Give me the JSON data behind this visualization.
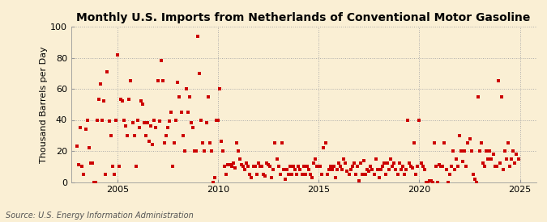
{
  "title": "Monthly U.S. Imports from Netherlands of Conventional Motor Gasoline",
  "ylabel": "Thousand Barrels per Day",
  "source": "Source: U.S. Energy Information Administration",
  "background_color": "#faefd4",
  "marker_color": "#cc0000",
  "marker_size": 5,
  "xlim": [
    2002.7,
    2025.8
  ],
  "ylim": [
    0,
    100
  ],
  "yticks": [
    0,
    20,
    40,
    60,
    80,
    100
  ],
  "xticks": [
    2005,
    2010,
    2015,
    2020,
    2025
  ],
  "grid_color": "#aaaaaa",
  "title_fontsize": 10,
  "label_fontsize": 8,
  "tick_fontsize": 8,
  "source_fontsize": 7,
  "dates": [
    2003.0,
    2003.083,
    2003.167,
    2003.25,
    2003.333,
    2003.417,
    2003.5,
    2003.583,
    2003.667,
    2003.75,
    2003.833,
    2003.917,
    2004.0,
    2004.083,
    2004.167,
    2004.25,
    2004.333,
    2004.417,
    2004.5,
    2004.583,
    2004.667,
    2004.75,
    2004.833,
    2004.917,
    2005.0,
    2005.083,
    2005.167,
    2005.25,
    2005.333,
    2005.417,
    2005.5,
    2005.583,
    2005.667,
    2005.75,
    2005.833,
    2005.917,
    2006.0,
    2006.083,
    2006.167,
    2006.25,
    2006.333,
    2006.417,
    2006.5,
    2006.583,
    2006.667,
    2006.75,
    2006.833,
    2006.917,
    2007.0,
    2007.083,
    2007.167,
    2007.25,
    2007.333,
    2007.417,
    2007.5,
    2007.583,
    2007.667,
    2007.75,
    2007.833,
    2007.917,
    2008.0,
    2008.083,
    2008.167,
    2008.25,
    2008.333,
    2008.417,
    2008.5,
    2008.583,
    2008.667,
    2008.75,
    2008.833,
    2008.917,
    2009.0,
    2009.083,
    2009.167,
    2009.25,
    2009.333,
    2009.417,
    2009.5,
    2009.583,
    2009.667,
    2009.75,
    2009.833,
    2009.917,
    2010.0,
    2010.083,
    2010.167,
    2010.25,
    2010.333,
    2010.417,
    2010.5,
    2010.583,
    2010.667,
    2010.75,
    2010.833,
    2010.917,
    2011.0,
    2011.083,
    2011.167,
    2011.25,
    2011.333,
    2011.417,
    2011.5,
    2011.583,
    2011.667,
    2011.75,
    2011.833,
    2011.917,
    2012.0,
    2012.083,
    2012.167,
    2012.25,
    2012.333,
    2012.417,
    2012.5,
    2012.583,
    2012.667,
    2012.75,
    2012.833,
    2012.917,
    2013.0,
    2013.083,
    2013.167,
    2013.25,
    2013.333,
    2013.417,
    2013.5,
    2013.583,
    2013.667,
    2013.75,
    2013.833,
    2013.917,
    2014.0,
    2014.083,
    2014.167,
    2014.25,
    2014.333,
    2014.417,
    2014.5,
    2014.583,
    2014.667,
    2014.75,
    2014.833,
    2014.917,
    2015.0,
    2015.083,
    2015.167,
    2015.25,
    2015.333,
    2015.417,
    2015.5,
    2015.583,
    2015.667,
    2015.75,
    2015.833,
    2015.917,
    2016.0,
    2016.083,
    2016.167,
    2016.25,
    2016.333,
    2016.417,
    2016.5,
    2016.583,
    2016.667,
    2016.75,
    2016.833,
    2016.917,
    2017.0,
    2017.083,
    2017.167,
    2017.25,
    2017.333,
    2017.417,
    2017.5,
    2017.583,
    2017.667,
    2017.75,
    2017.833,
    2017.917,
    2018.0,
    2018.083,
    2018.167,
    2018.25,
    2018.333,
    2018.417,
    2018.5,
    2018.583,
    2018.667,
    2018.75,
    2018.833,
    2018.917,
    2019.0,
    2019.083,
    2019.167,
    2019.25,
    2019.333,
    2019.417,
    2019.5,
    2019.583,
    2019.667,
    2019.75,
    2019.833,
    2019.917,
    2020.0,
    2020.083,
    2020.167,
    2020.25,
    2020.333,
    2020.417,
    2020.5,
    2020.583,
    2020.667,
    2020.75,
    2020.833,
    2020.917,
    2021.0,
    2021.083,
    2021.167,
    2021.25,
    2021.333,
    2021.417,
    2021.5,
    2021.583,
    2021.667,
    2021.75,
    2021.833,
    2021.917,
    2022.0,
    2022.083,
    2022.167,
    2022.25,
    2022.333,
    2022.417,
    2022.5,
    2022.583,
    2022.667,
    2022.75,
    2022.833,
    2022.917,
    2023.0,
    2023.083,
    2023.167,
    2023.25,
    2023.333,
    2023.417,
    2023.5,
    2023.583,
    2023.667,
    2023.75,
    2023.833,
    2023.917,
    2024.0,
    2024.083,
    2024.167,
    2024.25,
    2024.333,
    2024.417,
    2024.5,
    2024.583,
    2024.667,
    2024.75,
    2024.833,
    2024.917
  ],
  "values": [
    23,
    11,
    35,
    10,
    5,
    34,
    40,
    22,
    12,
    12,
    0,
    0,
    40,
    53,
    63,
    40,
    52,
    5,
    71,
    39,
    30,
    10,
    5,
    40,
    82,
    10,
    53,
    52,
    40,
    36,
    30,
    53,
    65,
    38,
    30,
    10,
    40,
    35,
    52,
    50,
    38,
    30,
    38,
    26,
    36,
    24,
    40,
    35,
    65,
    39,
    78,
    65,
    25,
    30,
    35,
    39,
    45,
    10,
    25,
    40,
    64,
    55,
    45,
    30,
    20,
    60,
    45,
    55,
    38,
    35,
    20,
    20,
    94,
    70,
    40,
    25,
    20,
    38,
    55,
    25,
    20,
    0,
    3,
    40,
    40,
    60,
    26,
    20,
    10,
    5,
    11,
    11,
    10,
    12,
    9,
    25,
    20,
    15,
    11,
    10,
    8,
    12,
    10,
    5,
    3,
    10,
    10,
    5,
    12,
    10,
    10,
    5,
    4,
    12,
    11,
    10,
    3,
    8,
    25,
    15,
    10,
    5,
    25,
    8,
    2,
    8,
    5,
    10,
    5,
    10,
    8,
    5,
    10,
    8,
    5,
    10,
    5,
    10,
    8,
    5,
    3,
    12,
    15,
    10,
    10,
    10,
    5,
    22,
    25,
    5,
    8,
    10,
    8,
    10,
    3,
    8,
    12,
    10,
    8,
    15,
    12,
    7,
    5,
    8,
    10,
    12,
    5,
    10,
    1,
    12,
    5,
    14,
    5,
    8,
    7,
    10,
    8,
    5,
    15,
    8,
    3,
    8,
    10,
    12,
    5,
    12,
    8,
    15,
    10,
    12,
    8,
    5,
    12,
    8,
    10,
    5,
    8,
    40,
    12,
    10,
    9,
    25,
    5,
    10,
    40,
    12,
    10,
    8,
    0,
    0,
    1,
    1,
    0,
    25,
    10,
    0,
    11,
    10,
    10,
    25,
    8,
    0,
    5,
    10,
    20,
    8,
    15,
    10,
    30,
    20,
    13,
    20,
    10,
    25,
    28,
    20,
    5,
    2,
    0,
    55,
    20,
    25,
    12,
    10,
    20,
    15,
    20,
    15,
    18,
    10,
    10,
    65,
    12,
    55,
    8,
    20,
    15,
    25,
    10,
    15,
    20,
    12,
    18,
    15
  ]
}
